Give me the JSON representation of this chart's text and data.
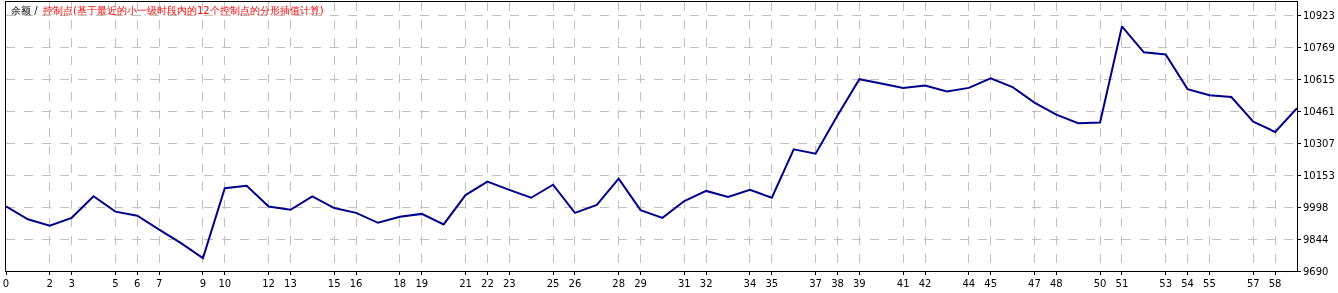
{
  "chart_data": {
    "type": "line",
    "title": "余额 /",
    "subtitle": "控制点(基于最近的小一级时段内的12个控制点的分形插值计算)",
    "x": [
      0,
      1,
      2,
      3,
      4,
      5,
      6,
      7,
      8,
      9,
      10,
      11,
      12,
      13,
      14,
      15,
      16,
      17,
      18,
      19,
      20,
      21,
      22,
      23,
      24,
      25,
      26,
      27,
      28,
      29,
      30,
      31,
      32,
      33,
      34,
      35,
      36,
      37,
      38,
      39,
      40,
      41,
      42,
      43,
      44,
      45,
      46,
      47,
      48,
      49,
      50,
      51,
      52,
      53,
      54,
      55,
      56,
      57,
      58,
      59
    ],
    "series": [
      {
        "color": "#00008b",
        "values": [
          10002,
          9940,
          9909,
          9947,
          10051,
          9977,
          9957,
          9890,
          9825,
          9752,
          10090,
          10102,
          10002,
          9986,
          10051,
          9994,
          9971,
          9923,
          9952,
          9966,
          9915,
          10057,
          10122,
          10082,
          10044,
          10107,
          9971,
          10009,
          10136,
          9984,
          9947,
          10028,
          10077,
          10048,
          10082,
          10044,
          10278,
          10257,
          10441,
          10617,
          10596,
          10575,
          10586,
          10558,
          10575,
          10621,
          10579,
          10504,
          10446,
          10404,
          10408,
          10872,
          10747,
          10736,
          10569,
          10539,
          10531,
          10412,
          10362,
          10477
        ]
      }
    ],
    "xlim": [
      0,
      59
    ],
    "xticks": [
      0,
      2,
      3,
      5,
      6,
      7,
      9,
      10,
      12,
      13,
      15,
      16,
      18,
      19,
      21,
      22,
      23,
      25,
      26,
      28,
      29,
      31,
      32,
      34,
      35,
      37,
      38,
      39,
      41,
      42,
      44,
      45,
      47,
      48,
      50,
      51,
      53,
      54,
      55,
      57,
      58
    ],
    "ylim": [
      9690,
      10990
    ],
    "yticks": [
      9690,
      9844,
      9998,
      10153,
      10307,
      10461,
      10615,
      10769,
      10923
    ],
    "grid": true,
    "line_style": "solid"
  }
}
